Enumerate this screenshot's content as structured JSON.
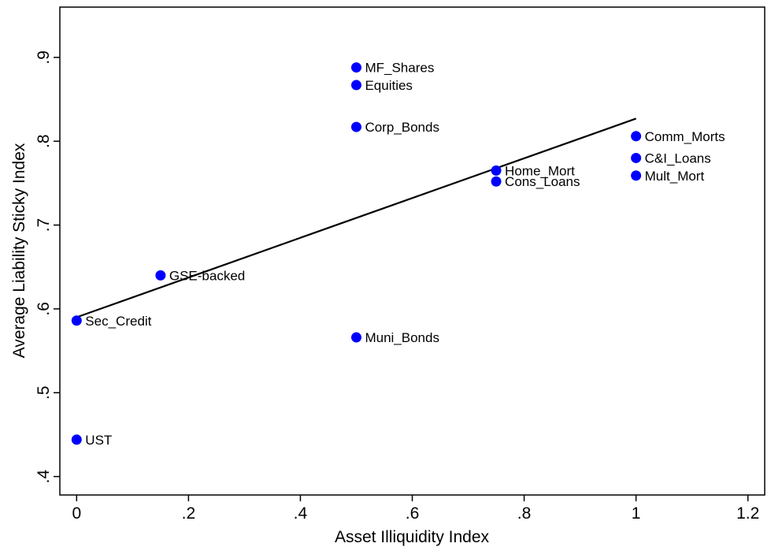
{
  "chart_data": {
    "type": "scatter",
    "xlabel": "Asset Illiquidity Index",
    "ylabel": "Average Liability Sticky Index",
    "xlim": [
      -0.03,
      1.23
    ],
    "ylim": [
      0.378,
      0.96
    ],
    "x_ticks": [
      {
        "value": 0,
        "label": "0"
      },
      {
        "value": 0.2,
        "label": ".2"
      },
      {
        "value": 0.4,
        "label": ".4"
      },
      {
        "value": 0.6,
        "label": ".6"
      },
      {
        "value": 0.8,
        "label": ".8"
      },
      {
        "value": 1,
        "label": "1"
      },
      {
        "value": 1.2,
        "label": "1.2"
      }
    ],
    "y_ticks": [
      {
        "value": 0.4,
        "label": ".4"
      },
      {
        "value": 0.5,
        "label": ".5"
      },
      {
        "value": 0.6,
        "label": ".6"
      },
      {
        "value": 0.7,
        "label": ".7"
      },
      {
        "value": 0.8,
        "label": ".8"
      },
      {
        "value": 0.9,
        "label": ".9"
      }
    ],
    "grid": false,
    "marker_color": "#0000ff",
    "fit_line_color": "#000000",
    "points": [
      {
        "label": "MF_Shares",
        "x": 0.5,
        "y": 0.888
      },
      {
        "label": "Equities",
        "x": 0.5,
        "y": 0.867
      },
      {
        "label": "Corp_Bonds",
        "x": 0.5,
        "y": 0.817
      },
      {
        "label": "Comm_Morts",
        "x": 1.0,
        "y": 0.806
      },
      {
        "label": "C&I_Loans",
        "x": 1.0,
        "y": 0.78
      },
      {
        "label": "Home_Mort",
        "x": 0.75,
        "y": 0.765
      },
      {
        "label": "Mult_Mort",
        "x": 1.0,
        "y": 0.759
      },
      {
        "label": "Cons_Loans",
        "x": 0.75,
        "y": 0.752
      },
      {
        "label": "GSE-backed",
        "x": 0.15,
        "y": 0.64
      },
      {
        "label": "Sec_Credit",
        "x": 0.0,
        "y": 0.586
      },
      {
        "label": "Muni_Bonds",
        "x": 0.5,
        "y": 0.566
      },
      {
        "label": "UST",
        "x": 0.0,
        "y": 0.444
      }
    ],
    "fit_line": {
      "x": [
        0.0,
        1.0
      ],
      "y": [
        0.59,
        0.827
      ]
    }
  }
}
